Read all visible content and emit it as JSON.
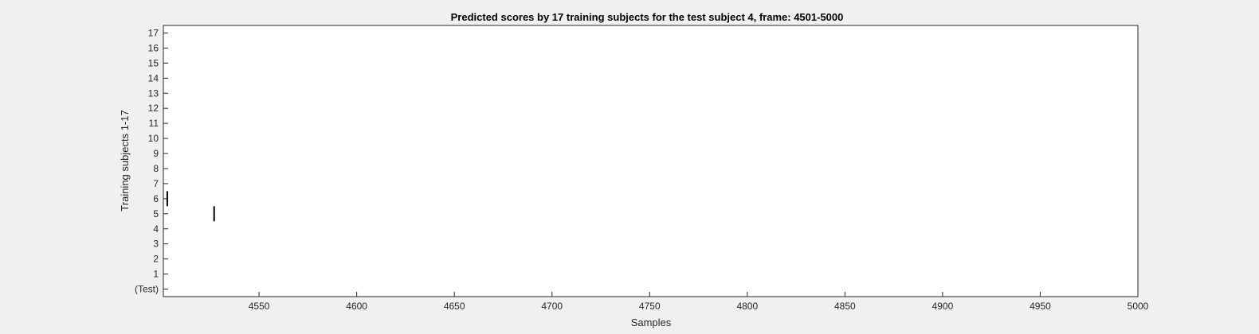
{
  "chart_data": {
    "type": "raster",
    "title": "Predicted scores by 17 training subjects for the test subject 4, frame: 4501-5000",
    "xlabel": "Samples",
    "ylabel": "Training subjects 1-17",
    "xlim": [
      4501,
      5000
    ],
    "ylim": [
      -0.5,
      17.5
    ],
    "x_ticks": [
      4550,
      4600,
      4650,
      4700,
      4750,
      4800,
      4850,
      4900,
      4950,
      5000
    ],
    "y_ticks": [
      0,
      1,
      2,
      3,
      4,
      5,
      6,
      7,
      8,
      9,
      10,
      11,
      12,
      13,
      14,
      15,
      16,
      17
    ],
    "y_tick_labels": [
      "(Test)",
      "1",
      "2",
      "3",
      "4",
      "5",
      "6",
      "7",
      "8",
      "9",
      "10",
      "11",
      "12",
      "13",
      "14",
      "15",
      "16",
      "17"
    ],
    "grid": false,
    "events": [
      {
        "x": 4503,
        "y": 6
      },
      {
        "x": 4527,
        "y": 5
      }
    ]
  }
}
